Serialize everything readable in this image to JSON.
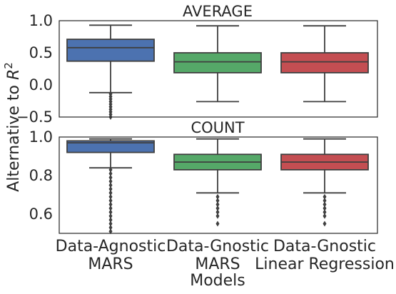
{
  "figure": {
    "ylabel": "Alternative to $R^2$",
    "xlabel": "Models",
    "categories": [
      "Data-Agnostic\nMARS",
      "Data-Gnostic\nMARS",
      "Data-Gnostic\nLinear Regression"
    ],
    "colors": [
      "#4c72b0",
      "#55a868",
      "#c44e52"
    ]
  },
  "chart_data": [
    {
      "type": "box",
      "title": "AVERAGE",
      "ylim": [
        -0.5,
        1.0
      ],
      "yticks": [
        1.0,
        0.5,
        0.0,
        -0.5
      ],
      "ytick_labels": [
        "1.0",
        "0.5",
        "0.0",
        "−0.5"
      ],
      "boxes": [
        {
          "category": "Data-Agnostic MARS",
          "whisker_low": -0.12,
          "q1": 0.37,
          "median": 0.58,
          "q3": 0.71,
          "whisker_high": 0.93,
          "outliers": [
            -0.14,
            -0.18,
            -0.22,
            -0.26,
            -0.3,
            -0.34,
            -0.38,
            -0.42,
            -0.46,
            -0.5
          ]
        },
        {
          "category": "Data-Gnostic MARS",
          "whisker_low": -0.26,
          "q1": 0.19,
          "median": 0.36,
          "q3": 0.5,
          "whisker_high": 0.92,
          "outliers": []
        },
        {
          "category": "Data-Gnostic Linear Regression",
          "whisker_low": -0.26,
          "q1": 0.19,
          "median": 0.36,
          "q3": 0.5,
          "whisker_high": 0.92,
          "outliers": []
        }
      ]
    },
    {
      "type": "box",
      "title": "COUNT",
      "ylim": [
        0.5,
        1.0
      ],
      "yticks": [
        1.0,
        0.8,
        0.6
      ],
      "ytick_labels": [
        "1.0",
        "0.8",
        "0.6"
      ],
      "boxes": [
        {
          "category": "Data-Agnostic MARS",
          "whisker_low": 0.84,
          "q1": 0.92,
          "median": 0.97,
          "q3": 0.98,
          "whisker_high": 0.99,
          "outliers": [
            0.83,
            0.81,
            0.79,
            0.77,
            0.75,
            0.73,
            0.71,
            0.69,
            0.67,
            0.65,
            0.63,
            0.61,
            0.59,
            0.57,
            0.55,
            0.53,
            0.51
          ]
        },
        {
          "category": "Data-Gnostic MARS",
          "whisker_low": 0.71,
          "q1": 0.83,
          "median": 0.87,
          "q3": 0.91,
          "whisker_high": 0.99,
          "outliers": [
            0.69,
            0.67,
            0.65,
            0.63,
            0.61,
            0.59,
            0.55
          ]
        },
        {
          "category": "Data-Gnostic Linear Regression",
          "whisker_low": 0.71,
          "q1": 0.83,
          "median": 0.87,
          "q3": 0.91,
          "whisker_high": 0.99,
          "outliers": [
            0.69,
            0.67,
            0.65,
            0.63,
            0.61,
            0.59,
            0.55
          ]
        }
      ]
    }
  ]
}
